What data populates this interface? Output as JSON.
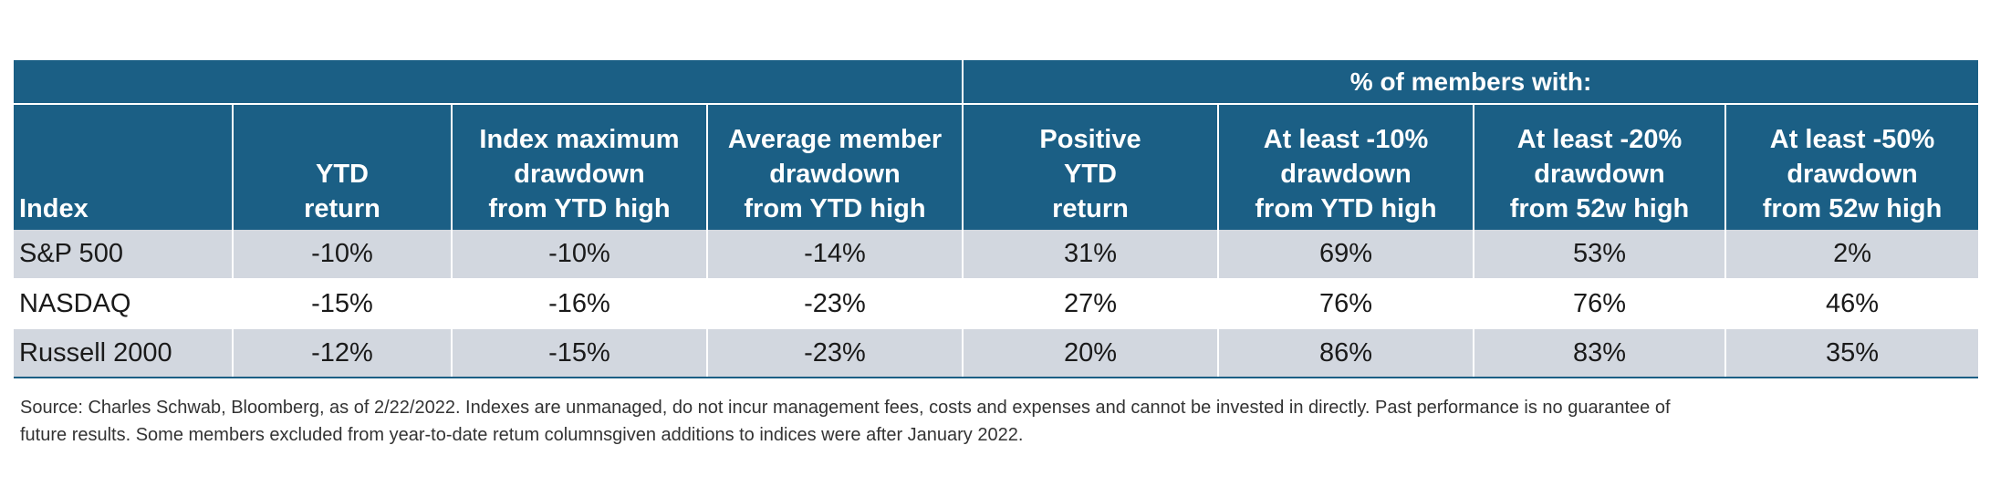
{
  "group_header": "% of members with:",
  "columns": [
    {
      "lines": [
        "Index"
      ]
    },
    {
      "lines": [
        "YTD",
        "return"
      ]
    },
    {
      "lines": [
        "Index maximum",
        "drawdown",
        "from YTD high"
      ]
    },
    {
      "lines": [
        "Average member",
        "drawdown",
        "from YTD high"
      ]
    },
    {
      "lines": [
        "Positive",
        "YTD",
        "return"
      ]
    },
    {
      "lines": [
        "At least -10%",
        "drawdown",
        "from YTD high"
      ]
    },
    {
      "lines": [
        "At least -20%",
        "drawdown",
        "from 52w high"
      ]
    },
    {
      "lines": [
        "At least -50%",
        "drawdown",
        "from 52w high"
      ]
    }
  ],
  "rows": [
    {
      "cells": [
        "S&P 500",
        "-10%",
        "-10%",
        "-14%",
        "31%",
        "69%",
        "53%",
        "2%"
      ]
    },
    {
      "cells": [
        "NASDAQ",
        "-15%",
        "-16%",
        "-23%",
        "27%",
        "76%",
        "76%",
        "46%"
      ]
    },
    {
      "cells": [
        "Russell 2000",
        "-12%",
        "-15%",
        "-23%",
        "20%",
        "86%",
        "83%",
        "35%"
      ]
    }
  ],
  "source_line1": "Source: Charles Schwab, Bloomberg, as of 2/22/2022. Indexes are unmanaged, do not incur management fees, costs and expenses and cannot be invested in directly. Past performance is no guarantee of",
  "source_line2": "future results. Some members excluded from year-to-date retum columnsgiven additions to indices were after January 2022.",
  "colors": {
    "header_bg": "#1b5f85",
    "header_text": "#ffffff",
    "row_shade": "#d2d7df",
    "body_text": "#1a1a1a"
  }
}
